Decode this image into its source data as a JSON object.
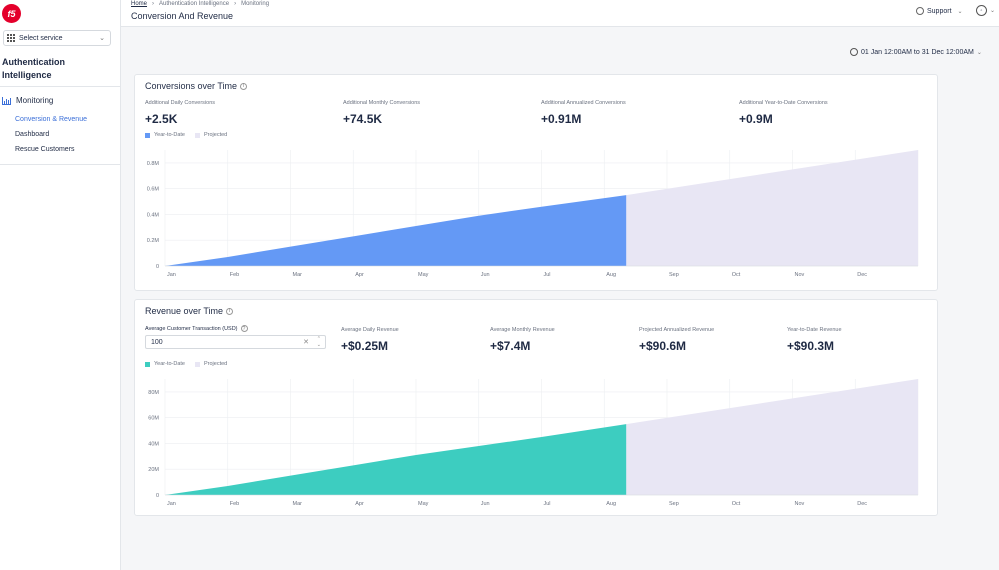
{
  "sidebar": {
    "logo_text": "f5",
    "service_placeholder": "Select service",
    "app_title": "Authentication Intelligence",
    "section": "Monitoring",
    "items": [
      {
        "label": "Conversion & Revenue",
        "active": true
      },
      {
        "label": "Dashboard",
        "active": false
      },
      {
        "label": "Rescue Customers",
        "active": false
      }
    ]
  },
  "header": {
    "breadcrumb": [
      "Home",
      "Authentication Intelligence",
      "Monitoring"
    ],
    "title": "Conversion And Revenue",
    "support_label": "Support",
    "date_range": "01 Jan 12:00AM to 31 Dec 12:00AM"
  },
  "conversions": {
    "title": "Conversions over Time",
    "metrics": [
      {
        "label": "Additional Daily Conversions",
        "value": "+2.5K"
      },
      {
        "label": "Additional Monthly Conversions",
        "value": "+74.5K"
      },
      {
        "label": "Additional Annualized Conversions",
        "value": "+0.91M"
      },
      {
        "label": "Additional Year-to-Date Conversions",
        "value": "+0.9M"
      }
    ],
    "legend": {
      "ytd": "Year-to-Date",
      "projected": "Projected"
    }
  },
  "revenue": {
    "title": "Revenue over Time",
    "input_label": "Average Customer Transaction (USD)",
    "input_value": "100",
    "metrics": [
      {
        "label": "Average Daily Revenue",
        "value": "+$0.25M"
      },
      {
        "label": "Average Monthly Revenue",
        "value": "+$7.4M"
      },
      {
        "label": "Projected Annualized Revenue",
        "value": "+$90.6M"
      },
      {
        "label": "Year-to-Date Revenue",
        "value": "+$90.3M"
      }
    ],
    "legend": {
      "ytd": "Year-to-Date",
      "projected": "Projected"
    }
  },
  "colors": {
    "conversions_ytd": "#6499f5",
    "revenue_ytd": "#3dcdc0",
    "projected": "#e8e6f4",
    "accent": "#3b6fd8"
  },
  "chart_data": [
    {
      "type": "area",
      "categories": [
        "Jan",
        "Feb",
        "Mar",
        "Apr",
        "May",
        "Jun",
        "Jul",
        "Aug",
        "Sep",
        "Oct",
        "Nov",
        "Dec"
      ],
      "yticks": [
        "0",
        "0.2M",
        "0.4M",
        "0.6M",
        "0.8M"
      ],
      "ylim": [
        0,
        0.9
      ],
      "series": [
        {
          "name": "Year-to-Date",
          "points": [
            [
              0,
              0
            ],
            [
              1,
              0.07
            ],
            [
              2,
              0.15
            ],
            [
              3,
              0.23
            ],
            [
              4,
              0.31
            ],
            [
              5,
              0.39
            ],
            [
              6,
              0.46
            ],
            [
              7.35,
              0.55
            ]
          ]
        },
        {
          "name": "Projected",
          "points": [
            [
              7.35,
              0.55
            ],
            [
              12,
              0.9
            ]
          ]
        }
      ]
    },
    {
      "type": "area",
      "categories": [
        "Jan",
        "Feb",
        "Mar",
        "Apr",
        "May",
        "Jun",
        "Jul",
        "Aug",
        "Sep",
        "Oct",
        "Nov",
        "Dec"
      ],
      "yticks": [
        "0",
        "20M",
        "40M",
        "60M",
        "80M"
      ],
      "ylim": [
        0,
        90
      ],
      "series": [
        {
          "name": "Year-to-Date",
          "points": [
            [
              0,
              0
            ],
            [
              1,
              7
            ],
            [
              2,
              15
            ],
            [
              3,
              23
            ],
            [
              4,
              31
            ],
            [
              5,
              38
            ],
            [
              6,
              45
            ],
            [
              7.35,
              55
            ]
          ]
        },
        {
          "name": "Projected",
          "points": [
            [
              7.35,
              55
            ],
            [
              12,
              90
            ]
          ]
        }
      ]
    }
  ]
}
